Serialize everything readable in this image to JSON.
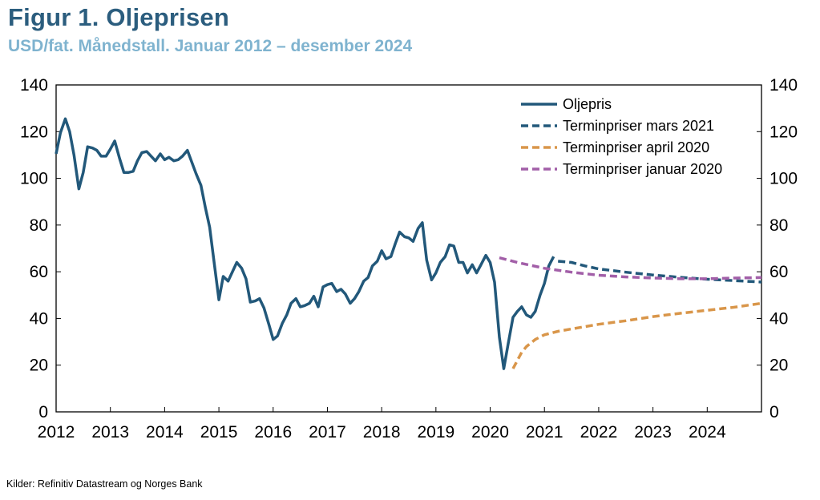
{
  "header": {
    "title": "Figur 1. Oljeprisen",
    "subtitle": "USD/fat. Månedstall. Januar 2012 – desember 2024"
  },
  "footer": {
    "source": "Kilder: Refinitiv Datastream og Norges Bank"
  },
  "colors": {
    "oljepris": "#22587a",
    "mars2021": "#22587a",
    "april2020": "#d9964a",
    "januar2020": "#a25fa8",
    "axis": "#000000"
  },
  "chart_data": {
    "type": "line",
    "title": "Figur 1. Oljeprisen",
    "subtitle": "USD/fat. Månedstall. Januar 2012 – desember 2024",
    "xlabel": "",
    "ylabel": "",
    "xlim": [
      2012.0,
      2025.0
    ],
    "ylim": [
      0,
      140
    ],
    "yticks": [
      0,
      20,
      40,
      60,
      80,
      100,
      120,
      140
    ],
    "xtick_labels": [
      "2012",
      "2013",
      "2014",
      "2015",
      "2016",
      "2017",
      "2018",
      "2019",
      "2020",
      "2021",
      "2022",
      "2023",
      "2024"
    ],
    "legend_position": "top-right",
    "grid": false,
    "series": [
      {
        "name": "Oljepris",
        "style": "solid",
        "color_key": "oljepris",
        "points": [
          [
            2012.0,
            110.5
          ],
          [
            2012.08,
            119.5
          ],
          [
            2012.17,
            125.5
          ],
          [
            2012.25,
            120
          ],
          [
            2012.33,
            110
          ],
          [
            2012.42,
            95.5
          ],
          [
            2012.5,
            102.5
          ],
          [
            2012.58,
            113.5
          ],
          [
            2012.67,
            113
          ],
          [
            2012.75,
            112
          ],
          [
            2012.83,
            109.5
          ],
          [
            2012.92,
            109.5
          ],
          [
            2013.0,
            112.5
          ],
          [
            2013.08,
            116
          ],
          [
            2013.17,
            108.5
          ],
          [
            2013.25,
            102.5
          ],
          [
            2013.33,
            102.5
          ],
          [
            2013.42,
            103
          ],
          [
            2013.5,
            107.5
          ],
          [
            2013.58,
            111
          ],
          [
            2013.67,
            111.5
          ],
          [
            2013.75,
            109.5
          ],
          [
            2013.83,
            107.5
          ],
          [
            2013.92,
            110.5
          ],
          [
            2014.0,
            108
          ],
          [
            2014.08,
            109
          ],
          [
            2014.17,
            107.5
          ],
          [
            2014.25,
            108
          ],
          [
            2014.33,
            109.5
          ],
          [
            2014.42,
            112
          ],
          [
            2014.5,
            107
          ],
          [
            2014.58,
            102
          ],
          [
            2014.67,
            97
          ],
          [
            2014.75,
            87.5
          ],
          [
            2014.83,
            79
          ],
          [
            2014.92,
            62.5
          ],
          [
            2015.0,
            48
          ],
          [
            2015.08,
            58
          ],
          [
            2015.17,
            56
          ],
          [
            2015.25,
            60
          ],
          [
            2015.33,
            64
          ],
          [
            2015.42,
            61.5
          ],
          [
            2015.5,
            57
          ],
          [
            2015.58,
            47
          ],
          [
            2015.67,
            47.5
          ],
          [
            2015.75,
            48.5
          ],
          [
            2015.83,
            44.5
          ],
          [
            2015.92,
            37.5
          ],
          [
            2016.0,
            31
          ],
          [
            2016.08,
            32.5
          ],
          [
            2016.17,
            38
          ],
          [
            2016.25,
            41.5
          ],
          [
            2016.33,
            46.5
          ],
          [
            2016.42,
            48.5
          ],
          [
            2016.5,
            45
          ],
          [
            2016.58,
            45.5
          ],
          [
            2016.67,
            46.5
          ],
          [
            2016.75,
            49.5
          ],
          [
            2016.83,
            45
          ],
          [
            2016.92,
            53.5
          ],
          [
            2017.0,
            54.5
          ],
          [
            2017.08,
            55
          ],
          [
            2017.17,
            51.5
          ],
          [
            2017.25,
            52.5
          ],
          [
            2017.33,
            50.5
          ],
          [
            2017.42,
            46.5
          ],
          [
            2017.5,
            48.5
          ],
          [
            2017.58,
            51.5
          ],
          [
            2017.67,
            56
          ],
          [
            2017.75,
            57.5
          ],
          [
            2017.83,
            62.5
          ],
          [
            2017.92,
            64.5
          ],
          [
            2018.0,
            69
          ],
          [
            2018.08,
            65.5
          ],
          [
            2018.17,
            66.5
          ],
          [
            2018.25,
            72
          ],
          [
            2018.33,
            77
          ],
          [
            2018.42,
            75
          ],
          [
            2018.5,
            74.5
          ],
          [
            2018.58,
            73
          ],
          [
            2018.67,
            78.5
          ],
          [
            2018.75,
            81
          ],
          [
            2018.83,
            65
          ],
          [
            2018.92,
            56.5
          ],
          [
            2019.0,
            59.5
          ],
          [
            2019.08,
            64
          ],
          [
            2019.17,
            66.5
          ],
          [
            2019.25,
            71.5
          ],
          [
            2019.33,
            71
          ],
          [
            2019.42,
            64
          ],
          [
            2019.5,
            64
          ],
          [
            2019.58,
            59.5
          ],
          [
            2019.67,
            63
          ],
          [
            2019.75,
            59.5
          ],
          [
            2019.83,
            63
          ],
          [
            2019.92,
            67
          ],
          [
            2020.0,
            64
          ],
          [
            2020.08,
            55.5
          ],
          [
            2020.17,
            32
          ],
          [
            2020.25,
            18.5
          ],
          [
            2020.33,
            29
          ],
          [
            2020.42,
            40.5
          ],
          [
            2020.5,
            43
          ],
          [
            2020.58,
            45
          ],
          [
            2020.67,
            41.5
          ],
          [
            2020.75,
            40.5
          ],
          [
            2020.83,
            43
          ],
          [
            2020.92,
            50
          ],
          [
            2021.0,
            55
          ],
          [
            2021.08,
            62.5
          ],
          [
            2021.17,
            66.5
          ]
        ]
      },
      {
        "name": "Terminpriser mars 2021",
        "style": "dashed",
        "color_key": "mars2021",
        "points": [
          [
            2021.25,
            64.5
          ],
          [
            2021.5,
            64
          ],
          [
            2021.75,
            62.5
          ],
          [
            2022.0,
            61.2
          ],
          [
            2022.5,
            59.8
          ],
          [
            2023.0,
            58.6
          ],
          [
            2023.5,
            57.6
          ],
          [
            2024.0,
            56.8
          ],
          [
            2024.5,
            56.2
          ],
          [
            2025.0,
            55.6
          ]
        ]
      },
      {
        "name": "Terminpriser april 2020",
        "style": "dashed",
        "color_key": "april2020",
        "points": [
          [
            2020.42,
            18.5
          ],
          [
            2020.5,
            22
          ],
          [
            2020.58,
            25.5
          ],
          [
            2020.67,
            28
          ],
          [
            2020.83,
            31
          ],
          [
            2021.0,
            33
          ],
          [
            2021.25,
            34.5
          ],
          [
            2021.5,
            35.5
          ],
          [
            2022.0,
            37.5
          ],
          [
            2022.5,
            39
          ],
          [
            2023.0,
            40.8
          ],
          [
            2023.5,
            42.2
          ],
          [
            2024.0,
            43.5
          ],
          [
            2024.5,
            44.8
          ],
          [
            2025.0,
            46.5
          ]
        ]
      },
      {
        "name": "Terminpriser januar 2020",
        "style": "dashed",
        "color_key": "januar2020",
        "points": [
          [
            2020.17,
            66
          ],
          [
            2020.5,
            64
          ],
          [
            2021.0,
            61.5
          ],
          [
            2021.5,
            59.8
          ],
          [
            2022.0,
            58.5
          ],
          [
            2022.5,
            57.8
          ],
          [
            2023.0,
            57.3
          ],
          [
            2023.5,
            57
          ],
          [
            2024.0,
            57
          ],
          [
            2024.5,
            57.3
          ],
          [
            2025.0,
            57.5
          ]
        ]
      }
    ]
  }
}
